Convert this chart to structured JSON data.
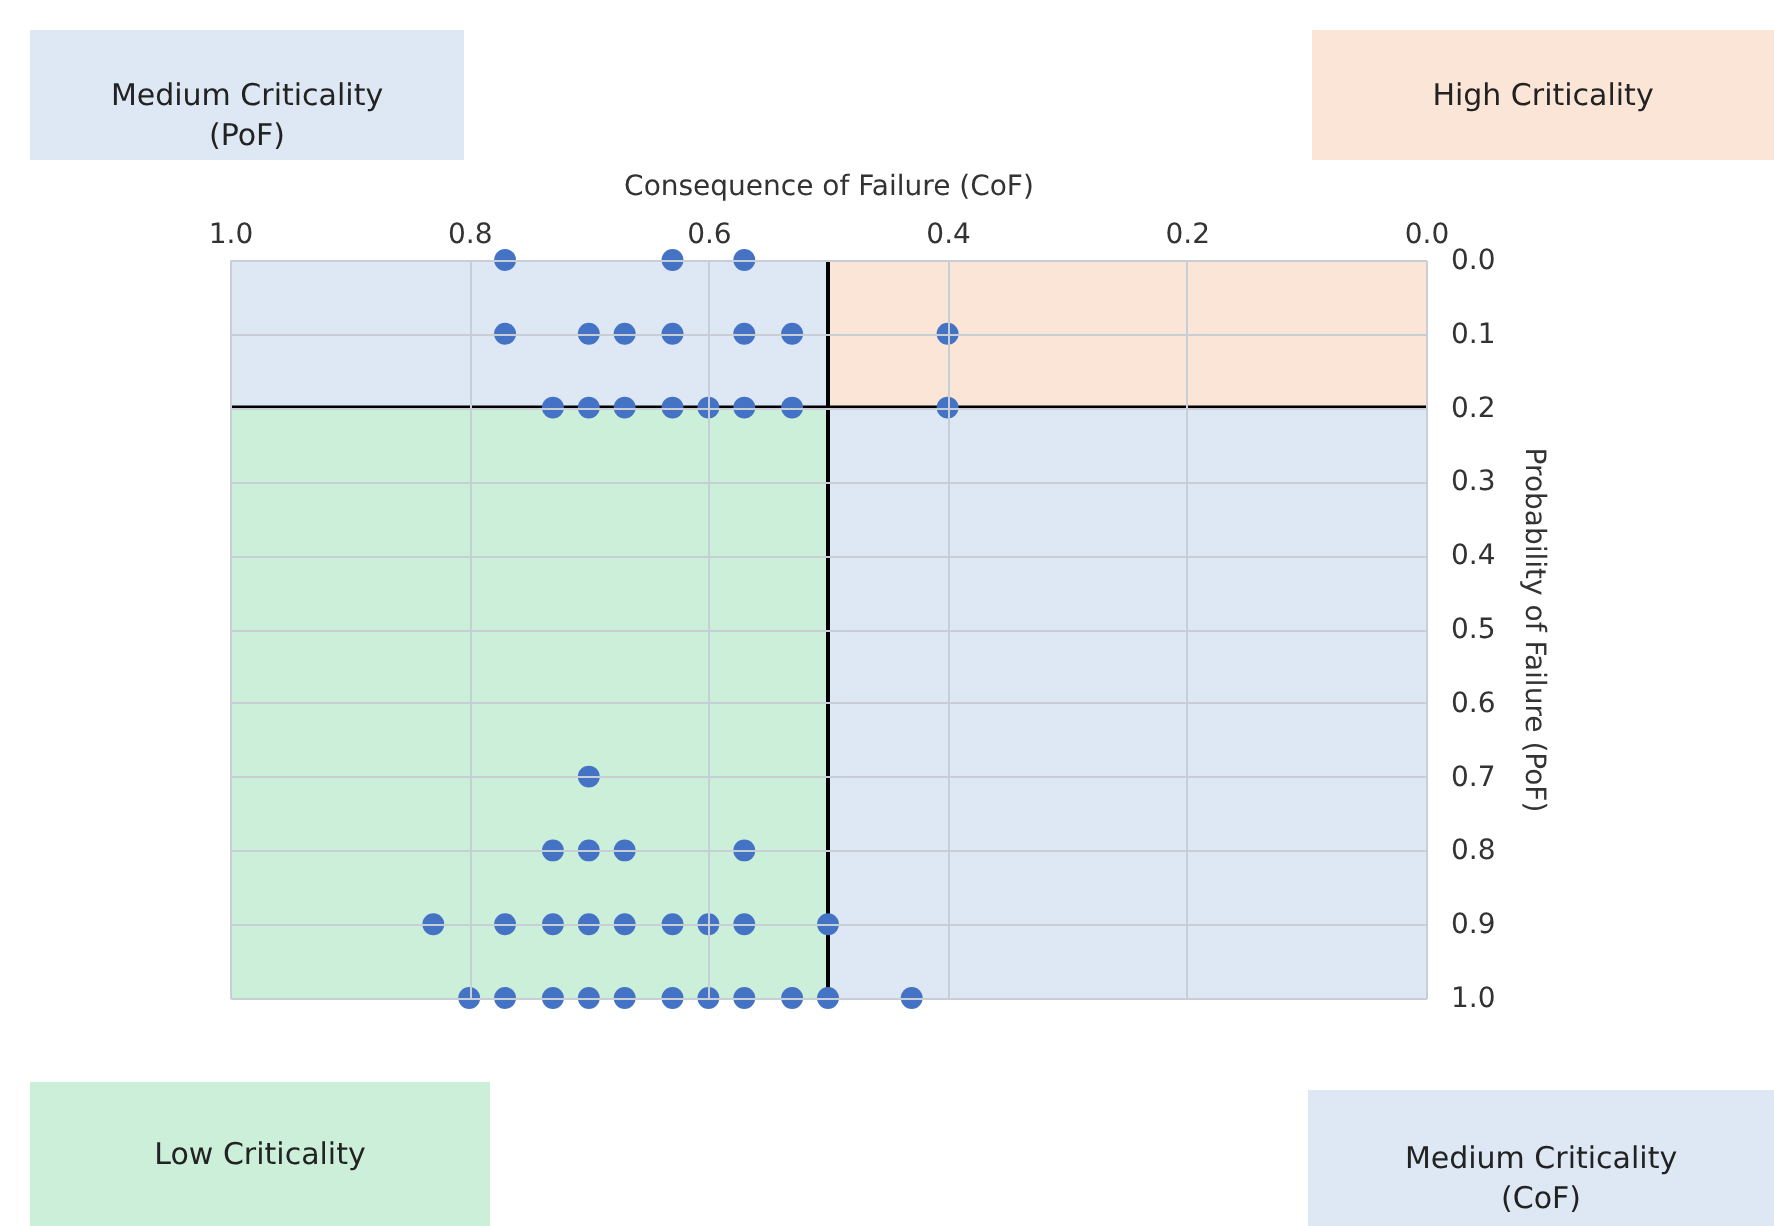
{
  "chart_data": {
    "type": "scatter",
    "xlabel": "Consequence of Failure (CoF)",
    "ylabel": "Probability of Failure (PoF)",
    "xlim": [
      1.0,
      0.0
    ],
    "xticks": [
      {
        "value": 1.0,
        "label": "1.0"
      },
      {
        "value": 0.8,
        "label": "0.8"
      },
      {
        "value": 0.6,
        "label": "0.6"
      },
      {
        "value": 0.4,
        "label": "0.4"
      },
      {
        "value": 0.2,
        "label": "0.2"
      },
      {
        "value": 0.0,
        "label": "0.0"
      }
    ],
    "ylim": [
      1.0,
      0.0
    ],
    "yticks": [
      {
        "value": 0.0,
        "label": "0.0"
      },
      {
        "value": 0.1,
        "label": "0.1"
      },
      {
        "value": 0.2,
        "label": "0.2"
      },
      {
        "value": 0.3,
        "label": "0.3"
      },
      {
        "value": 0.4,
        "label": "0.4"
      },
      {
        "value": 0.5,
        "label": "0.5"
      },
      {
        "value": 0.6,
        "label": "0.6"
      },
      {
        "value": 0.7,
        "label": "0.7"
      },
      {
        "value": 0.8,
        "label": "0.8"
      },
      {
        "value": 0.9,
        "label": "0.9"
      },
      {
        "value": 1.0,
        "label": "1.0"
      }
    ],
    "grid": true,
    "marker": "circle",
    "series": [
      {
        "color": "#4472c4",
        "x": [
          0.77,
          0.63,
          0.57,
          0.77,
          0.7,
          0.67,
          0.63,
          0.57,
          0.53,
          0.4,
          0.73,
          0.7,
          0.67,
          0.63,
          0.6,
          0.57,
          0.53,
          0.4,
          0.7,
          0.73,
          0.7,
          0.67,
          0.57,
          0.83,
          0.77,
          0.73,
          0.7,
          0.67,
          0.63,
          0.6,
          0.57,
          0.5,
          0.8,
          0.77,
          0.73,
          0.7,
          0.67,
          0.63,
          0.6,
          0.57,
          0.53,
          0.5,
          0.43
        ],
        "values": [
          0.0,
          0.0,
          0.0,
          0.1,
          0.1,
          0.1,
          0.1,
          0.1,
          0.1,
          0.1,
          0.2,
          0.2,
          0.2,
          0.2,
          0.2,
          0.2,
          0.2,
          0.2,
          0.7,
          0.8,
          0.8,
          0.8,
          0.8,
          0.9,
          0.9,
          0.9,
          0.9,
          0.9,
          0.9,
          0.9,
          0.9,
          0.9,
          1.0,
          1.0,
          1.0,
          1.0,
          1.0,
          1.0,
          1.0,
          1.0,
          1.0,
          1.0,
          1.0
        ]
      }
    ],
    "annotations": [
      "Medium Criticality\n(PoF)",
      "High Criticality",
      "Low Criticality",
      "Medium Criticality\n(CoF)"
    ],
    "ref_lines": [
      {
        "axis": "x",
        "value": 0.5,
        "color": "#000000"
      },
      {
        "axis": "y",
        "value": 0.2,
        "color": "#000000"
      }
    ]
  }
}
